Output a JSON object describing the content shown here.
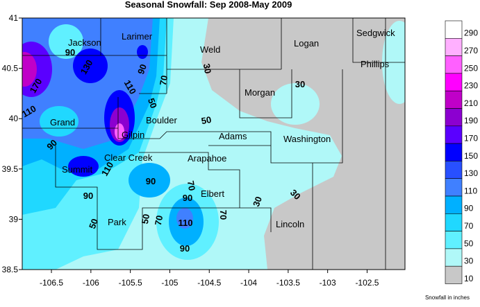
{
  "title": "Seasonal Snowfall: Sep 2008-May 2009",
  "map": {
    "xlim": [
      -106.87,
      -102.02
    ],
    "ylim": [
      38.5,
      41
    ],
    "xticks": [
      -106.5,
      -106,
      -105.5,
      -105,
      -104.5,
      -104,
      -103.5,
      -103,
      -102.5
    ],
    "yticks": [
      41,
      40.5,
      40,
      39.5,
      39,
      38.5
    ]
  },
  "regions": [
    "Jackson",
    "Larimer",
    "Weld",
    "Logan",
    "Sedgwick",
    "Phillips",
    "Morgan",
    "Grand",
    "Boulder",
    "Gilpin",
    "Clear Creek",
    "Adams",
    "Arapahoe",
    "Washington",
    "Summit",
    "Elbert",
    "Park",
    "Lincoln"
  ],
  "contour_labels": [
    90,
    130,
    170,
    110,
    90,
    110,
    70,
    90,
    50,
    30,
    50,
    110,
    90,
    50,
    70,
    90,
    70,
    110,
    90,
    50,
    70,
    30,
    30,
    30,
    90
  ],
  "legend": {
    "levels": [
      {
        "label": 290,
        "color": "#ffffff"
      },
      {
        "label": 270,
        "color": "#ffb0ff"
      },
      {
        "label": 250,
        "color": "#ff60ff"
      },
      {
        "label": 230,
        "color": "#ff00ff"
      },
      {
        "label": 210,
        "color": "#c000c8"
      },
      {
        "label": 190,
        "color": "#8c00d0"
      },
      {
        "label": 170,
        "color": "#5a00ff"
      },
      {
        "label": 150,
        "color": "#0000ff"
      },
      {
        "label": 130,
        "color": "#2850ff"
      },
      {
        "label": 110,
        "color": "#4080ff"
      },
      {
        "label": 90,
        "color": "#00b0ff"
      },
      {
        "label": 70,
        "color": "#20d8ff"
      },
      {
        "label": 50,
        "color": "#60f0ff"
      },
      {
        "label": 30,
        "color": "#b0f8f8"
      },
      {
        "label": 10,
        "color": "#c8c8c8"
      }
    ],
    "caption": "Snowfall in inches"
  }
}
